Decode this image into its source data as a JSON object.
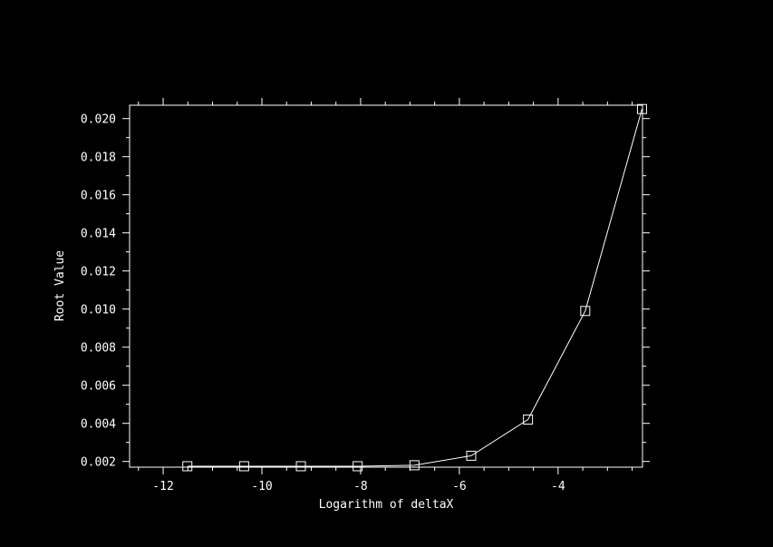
{
  "chart_data": {
    "type": "line",
    "title": "",
    "xlabel": "Logarithm of deltaX",
    "ylabel": "Root Value",
    "xlim": [
      -12.68,
      -2.29
    ],
    "ylim": [
      0.0017,
      0.0207
    ],
    "xticks": [
      -12,
      -10,
      -8,
      -6,
      -4
    ],
    "xtick_labels": [
      "-12",
      "-10",
      "-8",
      "-6",
      "-4"
    ],
    "yticks": [
      0.002,
      0.004,
      0.006,
      0.008,
      0.01,
      0.012,
      0.014,
      0.016,
      0.018,
      0.02
    ],
    "ytick_labels": [
      "0.002",
      "0.004",
      "0.006",
      "0.008",
      "0.010",
      "0.012",
      "0.014",
      "0.016",
      "0.018",
      "0.020"
    ],
    "grid": false,
    "marker": "square",
    "series": [
      {
        "x": [
          -11.51,
          -10.36,
          -9.21,
          -8.06,
          -6.91,
          -5.76,
          -4.61,
          -3.45,
          -2.3
        ],
        "y": [
          0.00175,
          0.00175,
          0.00175,
          0.00175,
          0.0018,
          0.0023,
          0.0042,
          0.0099,
          0.0205
        ]
      }
    ],
    "colors": {
      "background": "#000000",
      "foreground": "#ffffff"
    }
  }
}
